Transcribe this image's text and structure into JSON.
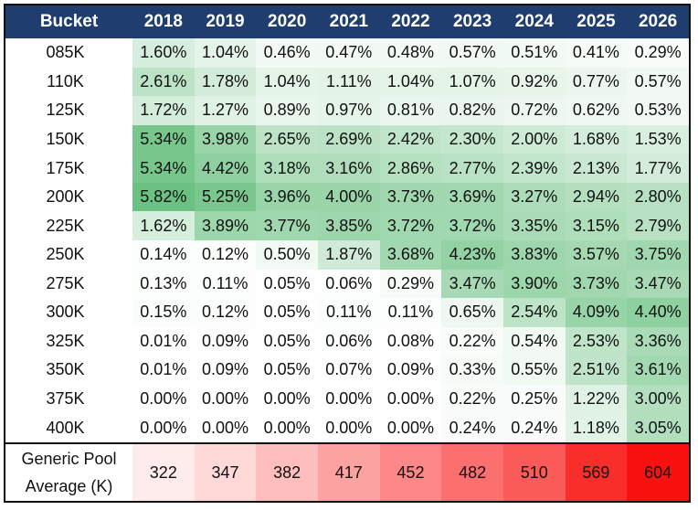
{
  "table": {
    "header_label": "Bucket",
    "years": [
      "2018",
      "2019",
      "2020",
      "2021",
      "2022",
      "2023",
      "2024",
      "2025",
      "2026"
    ],
    "rows": [
      {
        "bucket": "085K",
        "values": [
          "1.60%",
          "1.04%",
          "0.46%",
          "0.47%",
          "0.48%",
          "0.57%",
          "0.51%",
          "0.41%",
          "0.29%"
        ]
      },
      {
        "bucket": "110K",
        "values": [
          "2.61%",
          "1.78%",
          "1.04%",
          "1.11%",
          "1.04%",
          "1.07%",
          "0.92%",
          "0.77%",
          "0.57%"
        ]
      },
      {
        "bucket": "125K",
        "values": [
          "1.72%",
          "1.27%",
          "0.89%",
          "0.97%",
          "0.81%",
          "0.82%",
          "0.72%",
          "0.62%",
          "0.53%"
        ]
      },
      {
        "bucket": "150K",
        "values": [
          "5.34%",
          "3.98%",
          "2.65%",
          "2.69%",
          "2.42%",
          "2.30%",
          "2.00%",
          "1.68%",
          "1.53%"
        ]
      },
      {
        "bucket": "175K",
        "values": [
          "5.34%",
          "4.42%",
          "3.18%",
          "3.16%",
          "2.86%",
          "2.77%",
          "2.39%",
          "2.13%",
          "1.77%"
        ]
      },
      {
        "bucket": "200K",
        "values": [
          "5.82%",
          "5.25%",
          "3.96%",
          "4.00%",
          "3.73%",
          "3.69%",
          "3.27%",
          "2.94%",
          "2.80%"
        ]
      },
      {
        "bucket": "225K",
        "values": [
          "1.62%",
          "3.89%",
          "3.77%",
          "3.85%",
          "3.72%",
          "3.72%",
          "3.35%",
          "3.15%",
          "2.79%"
        ]
      },
      {
        "bucket": "250K",
        "values": [
          "0.14%",
          "0.12%",
          "0.50%",
          "1.87%",
          "3.68%",
          "4.23%",
          "3.83%",
          "3.57%",
          "3.75%"
        ]
      },
      {
        "bucket": "275K",
        "values": [
          "0.13%",
          "0.11%",
          "0.05%",
          "0.06%",
          "0.29%",
          "3.47%",
          "3.90%",
          "3.73%",
          "3.47%"
        ]
      },
      {
        "bucket": "300K",
        "values": [
          "0.15%",
          "0.12%",
          "0.05%",
          "0.11%",
          "0.11%",
          "0.65%",
          "2.54%",
          "4.09%",
          "4.40%"
        ]
      },
      {
        "bucket": "325K",
        "values": [
          "0.01%",
          "0.09%",
          "0.05%",
          "0.06%",
          "0.08%",
          "0.22%",
          "0.54%",
          "2.53%",
          "3.36%"
        ]
      },
      {
        "bucket": "350K",
        "values": [
          "0.01%",
          "0.09%",
          "0.05%",
          "0.07%",
          "0.09%",
          "0.33%",
          "0.55%",
          "2.51%",
          "3.61%"
        ]
      },
      {
        "bucket": "375K",
        "values": [
          "0.00%",
          "0.00%",
          "0.00%",
          "0.00%",
          "0.00%",
          "0.22%",
          "0.25%",
          "1.22%",
          "3.00%"
        ]
      },
      {
        "bucket": "400K",
        "values": [
          "0.00%",
          "0.00%",
          "0.00%",
          "0.00%",
          "0.00%",
          "0.24%",
          "0.24%",
          "1.18%",
          "3.05%"
        ]
      }
    ],
    "footer": {
      "label_line1": "Generic Pool",
      "label_line2": "Average (K)",
      "values": [
        "322",
        "347",
        "382",
        "417",
        "452",
        "482",
        "510",
        "569",
        "604"
      ]
    }
  },
  "colors": {
    "header_bg": "#1f3d6e",
    "green_high": "#63be7b",
    "red_high": "#f8120f"
  }
}
